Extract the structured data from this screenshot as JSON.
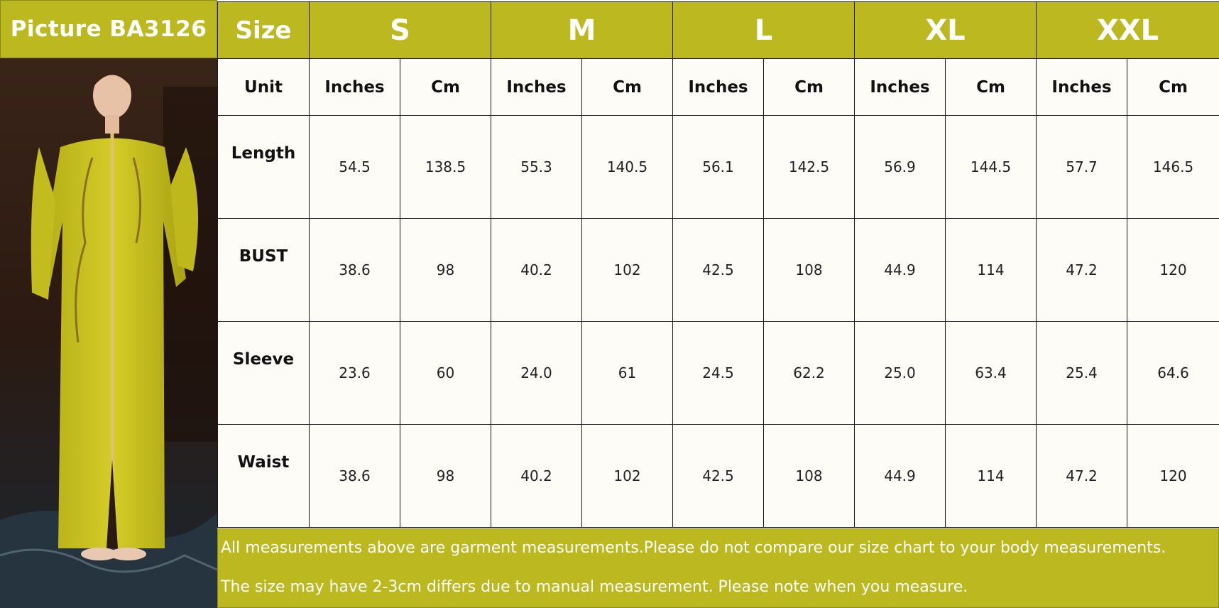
{
  "header": {
    "picture_label": "Picture  BA3126"
  },
  "table": {
    "size_label": "Size",
    "sizes": [
      "S",
      "M",
      "L",
      "XL",
      "XXL"
    ],
    "unit_label": "Unit",
    "units": [
      "Inches",
      "Cm"
    ],
    "rows": [
      {
        "name": "Length",
        "values": [
          "54.5",
          "138.5",
          "55.3",
          "140.5",
          "56.1",
          "142.5",
          "56.9",
          "144.5",
          "57.7",
          "146.5"
        ]
      },
      {
        "name": "BUST",
        "values": [
          "38.6",
          "98",
          "40.2",
          "102",
          "42.5",
          "108",
          "44.9",
          "114",
          "47.2",
          "120"
        ]
      },
      {
        "name": "Sleeve",
        "values": [
          "23.6",
          "60",
          "24.0",
          "61",
          "24.5",
          "62.2",
          "25.0",
          "63.4",
          "25.4",
          "64.6"
        ]
      },
      {
        "name": "Waist",
        "values": [
          "38.6",
          "98",
          "40.2",
          "102",
          "42.5",
          "108",
          "44.9",
          "114",
          "47.2",
          "120"
        ]
      }
    ]
  },
  "footer": {
    "line1": "All measurements above are garment measurements.Please do not compare our size chart to your body measurements.",
    "line2": "The size may have 2-3cm differs due to manual measurement. Please note when you measure."
  },
  "colors": {
    "accent": "#bcb820",
    "cell_bg": "#fdfcf7",
    "dress": "#c9c21f"
  }
}
